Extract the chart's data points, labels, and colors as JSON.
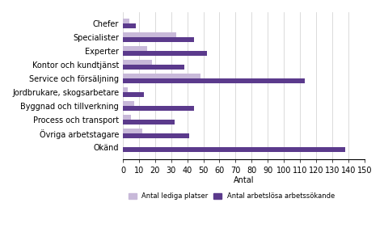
{
  "categories": [
    "Chefer",
    "Specialister",
    "Experter",
    "Kontor och kundtjänst",
    "Service och försäljning",
    "Jordbrukare, skogsarbetare",
    "Byggnad och tillverkning",
    "Process och transport",
    "Övriga arbetstagare",
    "Okänd"
  ],
  "lediga_platser": [
    4,
    33,
    15,
    18,
    48,
    3,
    7,
    5,
    12,
    0
  ],
  "arbetslosa": [
    8,
    44,
    52,
    38,
    113,
    13,
    44,
    32,
    41,
    138
  ],
  "color_lediga": "#c8b9d9",
  "color_arbetslosa": "#5b3a8c",
  "legend_lediga": "Antal lediga platser",
  "legend_arbetslosa": "Antal arbetslösa arbetssökande",
  "xlabel": "Antal",
  "xlim": [
    0,
    150
  ],
  "xticks": [
    0,
    10,
    20,
    30,
    40,
    50,
    60,
    70,
    80,
    90,
    100,
    110,
    120,
    130,
    140,
    150
  ],
  "background_color": "#ffffff",
  "grid_color": "#cccccc",
  "bar_height": 0.35
}
